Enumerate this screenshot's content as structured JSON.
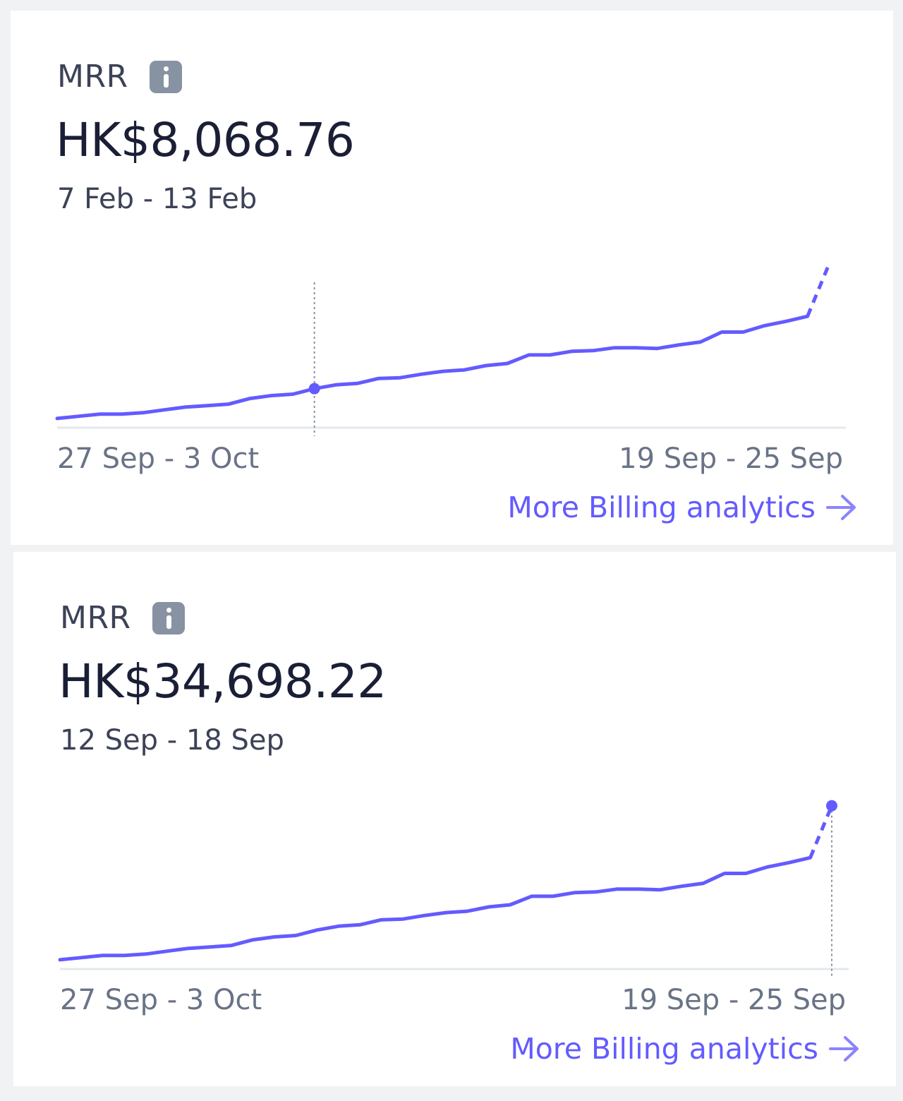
{
  "accent_color": "#635bff",
  "cards": [
    {
      "title": "MRR",
      "info_icon": "info-icon",
      "value": "HK$8,068.76",
      "period": "7 Feb - 13 Feb",
      "axis_start": "27 Sep - 3 Oct",
      "axis_end": "19 Sep - 25 Sep",
      "link_label": "More Billing analytics",
      "link_icon": "arrow-right-icon",
      "highlight_index": 12
    },
    {
      "title": "MRR",
      "info_icon": "info-icon",
      "value": "HK$34,698.22",
      "period": "12 Sep - 18 Sep",
      "axis_start": "27 Sep - 3 Oct",
      "axis_end": "19 Sep - 25 Sep",
      "link_label": "More Billing analytics",
      "link_icon": "arrow-right-icon",
      "highlight_index": 36
    }
  ],
  "chart_data": {
    "type": "line",
    "ylim": [
      0,
      36000
    ],
    "grid": false,
    "projected_last_segment": true,
    "values": [
      1683,
      2142,
      2601,
      2601,
      2907,
      3519,
      4131,
      4437,
      4743,
      5967,
      6579,
      6885,
      8068.76,
      8874,
      9180,
      10251,
      10404,
      11169,
      11781,
      12087,
      13005,
      13464,
      15300,
      15300,
      16065,
      16218,
      16830,
      16830,
      16677,
      17442,
      18054,
      20196,
      20196,
      21573,
      22491,
      23562,
      34698.22
    ]
  }
}
